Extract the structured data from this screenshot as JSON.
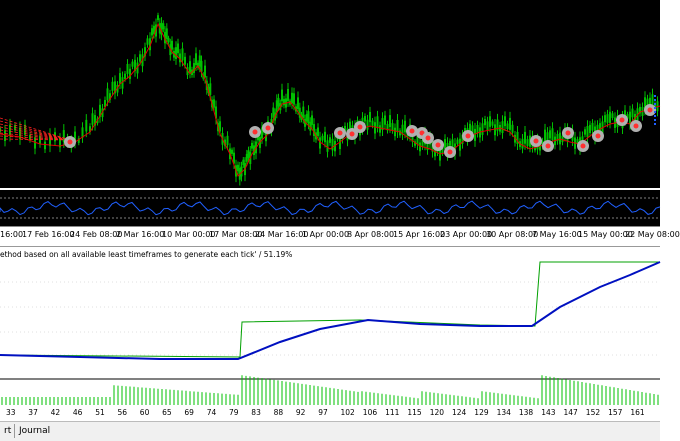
{
  "price_chart": {
    "colors": {
      "background": "#000000",
      "candles": "#00c000",
      "moving_average": "#e00000",
      "grid_dots": "#404040"
    }
  },
  "oscillator": {
    "colors": {
      "line": "#2060ff",
      "levels": "#ffffff"
    }
  },
  "time_axis": {
    "labels": [
      "16:00",
      "17 Feb 16:00",
      "24 Feb 08:00",
      "2 Mar 16:00",
      "10 Mar 00:00",
      "17 Mar 08:00",
      "24 Mar 16:00",
      "1 Apr 00:00",
      "8 Apr 08:00",
      "15 Apr 16:00",
      "23 Apr 00:00",
      "30 Apr 08:00",
      "7 May 16:00",
      "15 May 00:00",
      "22 May 08:00"
    ]
  },
  "report": {
    "caption": "ethod based on all available least timeframes to generate each tick' / 51.19%",
    "colors": {
      "balance": "#00a000",
      "equity": "#0010c0",
      "volume": "#00c000"
    },
    "x_labels": [
      "33",
      "37",
      "42",
      "46",
      "51",
      "56",
      "60",
      "65",
      "69",
      "74",
      "79",
      "83",
      "88",
      "92",
      "97",
      "102",
      "106",
      "111",
      "115",
      "120",
      "124",
      "129",
      "134",
      "138",
      "143",
      "147",
      "152",
      "157",
      "161"
    ]
  },
  "tabs": [
    {
      "label": "rt"
    },
    {
      "label": "Journal"
    }
  ]
}
